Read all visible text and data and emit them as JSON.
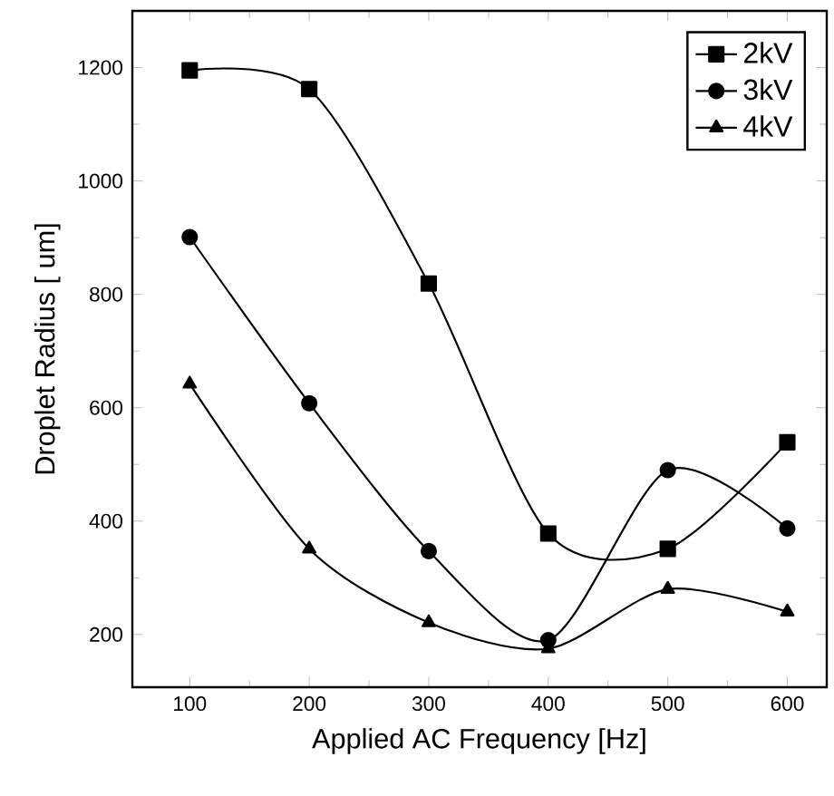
{
  "chart_data": {
    "type": "line",
    "xlabel": "Applied AC Frequency [Hz]",
    "ylabel": "Droplet Radius [ um]",
    "x": [
      100,
      200,
      300,
      400,
      500,
      600
    ],
    "series": [
      {
        "name": "2kV",
        "color": "#000000",
        "marker": "square",
        "values": [
          1195,
          1162,
          819,
          378,
          351,
          539
        ]
      },
      {
        "name": "3kV",
        "color": "#000000",
        "marker": "circle",
        "values": [
          901,
          608,
          347,
          190,
          490,
          387
        ]
      },
      {
        "name": "4kV",
        "color": "#000000",
        "marker": "triangle",
        "values": [
          642,
          351,
          221,
          175,
          280,
          240
        ]
      }
    ],
    "xlim": [
      52,
      633
    ],
    "ylim": [
      107,
      1300
    ],
    "xticks": [
      100,
      200,
      300,
      400,
      500,
      600
    ],
    "yticks": [
      200,
      400,
      600,
      800,
      1000,
      1200
    ],
    "grid": false,
    "legend": "top right",
    "line_style": "solid"
  }
}
